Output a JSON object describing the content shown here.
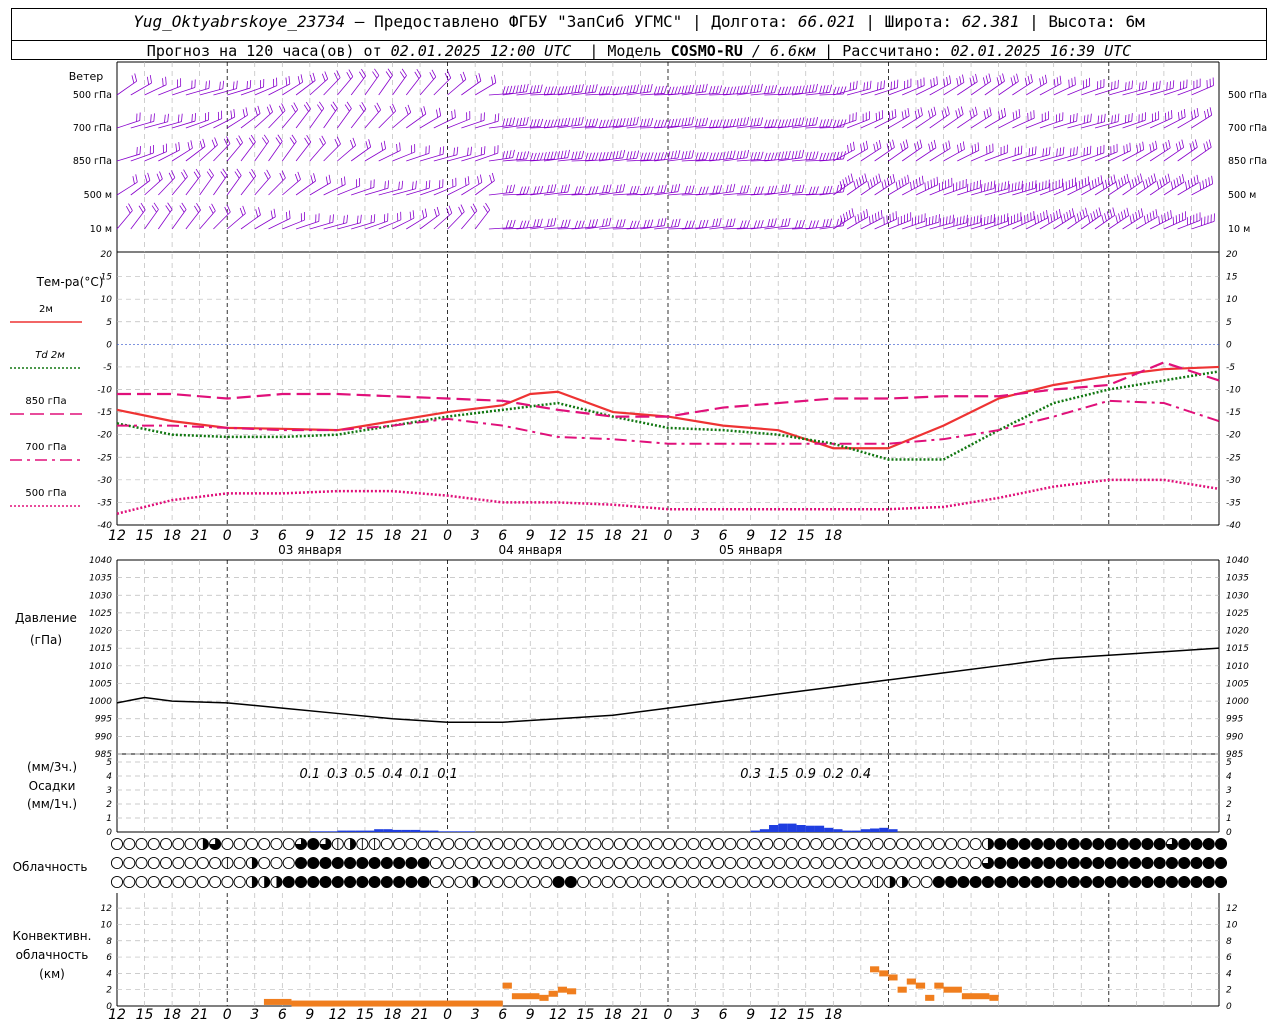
{
  "header": {
    "station": "Yug_Oktyabrskoye_23734",
    "provider": "– Предоставлено ФГБУ \"ЗапСиб УГМС\"",
    "lon_label": "Долгота:",
    "lon": "66.021",
    "lat_label": "Широта:",
    "lat": "62.381",
    "alt_label": "Высота:",
    "alt": "6м",
    "forecast_prefix": "Прогноз на 120 часа(ов) от",
    "forecast_time": "02.01.2025 12:00 UTC",
    "model_label": "Модель",
    "model_name": "COSMO-RU",
    "model_res": "/ 6.6км",
    "computed_label": "Рассчитано:",
    "computed_time": "02.01.2025 16:39 UTC"
  },
  "time_axis": {
    "hour_labels": [
      "12",
      "15",
      "18",
      "21",
      "0",
      "3",
      "6",
      "9",
      "12",
      "15",
      "18",
      "21",
      "0",
      "3",
      "6",
      "9",
      "12",
      "15",
      "18",
      "21",
      "0",
      "3",
      "6",
      "9",
      "12",
      "15",
      "18"
    ],
    "day_labels": [
      {
        "text": "03 января",
        "hour": 21
      },
      {
        "text": "04 января",
        "hour": 45
      },
      {
        "text": "05 января",
        "hour": 69
      }
    ]
  },
  "wind_panel": {
    "title": "Ветер",
    "levels": [
      "500 гПа",
      "700 гПа",
      "850 гПа",
      "500 м",
      "10  м"
    ],
    "colors": {
      "barb": "#8800cc"
    }
  },
  "temp_panel": {
    "title": "Тем-ра(°C)",
    "legend": [
      {
        "label": "2м",
        "style": "solid",
        "color": "#ee3333"
      },
      {
        "label": "Td  2м",
        "style": "dotted",
        "color": "#117711"
      },
      {
        "label": "850 гПа",
        "style": "longdash",
        "color": "#e0107a"
      },
      {
        "label": "700 гПа",
        "style": "dashdot",
        "color": "#e0107a"
      },
      {
        "label": "500 гПа",
        "style": "dotted",
        "color": "#e0107a"
      }
    ],
    "y_ticks": [
      20,
      15,
      10,
      5,
      0,
      -5,
      -10,
      -15,
      -20,
      -25,
      -30,
      -35,
      -40
    ]
  },
  "pressure_panel": {
    "title_line1": "Давление",
    "title_line2": "(гПа)",
    "y_ticks": [
      1040,
      1035,
      1030,
      1025,
      1020,
      1015,
      1010,
      1005,
      1000,
      995,
      990,
      985
    ]
  },
  "precip_panel": {
    "title_line1": "(мм/3ч.)",
    "title_line2": "Осадки",
    "title_line3": "(мм/1ч.)",
    "y_ticks": [
      5,
      4,
      3,
      2,
      1,
      0
    ],
    "amounts_3h": [
      {
        "hour": 21,
        "text": "0.1"
      },
      {
        "hour": 24,
        "text": "0.3"
      },
      {
        "hour": 27,
        "text": "0.5"
      },
      {
        "hour": 30,
        "text": "0.4"
      },
      {
        "hour": 33,
        "text": "0.1"
      },
      {
        "hour": 36,
        "text": "0.1"
      },
      {
        "hour": 69,
        "text": "0.3"
      },
      {
        "hour": 72,
        "text": "1.5"
      },
      {
        "hour": 75,
        "text": "0.9"
      },
      {
        "hour": 78,
        "text": "0.2"
      },
      {
        "hour": 81,
        "text": "0.4"
      }
    ]
  },
  "cloud_panel": {
    "title": "Облачность",
    "rows": [
      "0000000230000003431211000000000000000000000000000000000000000000000000024444444444444434444",
      "0000000001020004444444444400000000000000000000000000000000000000000000034444444444444444444",
      "0000000000022244444444444400020000004400000000000000000000000012200444444444444444444444444"
    ]
  },
  "conv_panel": {
    "title_line1": "Конвективн.",
    "title_line2": "облачность",
    "title_line3": "(км)",
    "y_ticks": [
      12,
      10,
      8,
      6,
      4,
      2,
      0
    ]
  },
  "chart_data": [
    {
      "type": "line",
      "name": "temperature",
      "x_unit": "hours from 02.01.2025 12:00 UTC",
      "ylim": [
        -40,
        20
      ],
      "series": [
        {
          "name": "2м",
          "x": [
            0,
            6,
            12,
            18,
            24,
            30,
            36,
            42,
            45,
            48,
            54,
            60,
            66,
            72,
            75,
            78,
            84,
            90,
            96,
            99,
            102,
            108,
            114,
            120
          ],
          "values": [
            -14.5,
            -17,
            -18.5,
            -18.7,
            -19,
            -17,
            -15,
            -13.5,
            -11,
            -10.5,
            -15,
            -16,
            -18,
            -19,
            -21,
            -23,
            -23,
            -18,
            -12,
            -10.5,
            -9,
            -7,
            -5.5,
            -5
          ]
        },
        {
          "name": "Td  2м",
          "x": [
            0,
            6,
            12,
            18,
            24,
            30,
            36,
            42,
            48,
            54,
            60,
            66,
            72,
            78,
            84,
            90,
            96,
            102,
            108,
            114,
            120
          ],
          "values": [
            -17.5,
            -20,
            -20.5,
            -20.5,
            -20,
            -18,
            -16,
            -14.5,
            -13,
            -16,
            -18.5,
            -19,
            -20,
            -22,
            -25.5,
            -25.5,
            -19,
            -13,
            -10,
            -8,
            -6
          ]
        },
        {
          "name": "850 гПа",
          "x": [
            0,
            6,
            12,
            18,
            24,
            30,
            36,
            42,
            48,
            54,
            60,
            66,
            72,
            78,
            84,
            90,
            96,
            102,
            108,
            114,
            120
          ],
          "values": [
            -11,
            -11,
            -12,
            -11,
            -11,
            -11.5,
            -12,
            -12.5,
            -14.5,
            -16,
            -16,
            -14,
            -13,
            -12,
            -12,
            -11.5,
            -11.5,
            -10,
            -9,
            -4,
            -8
          ]
        },
        {
          "name": "700 гПа",
          "x": [
            0,
            6,
            12,
            18,
            24,
            30,
            36,
            42,
            48,
            54,
            60,
            66,
            72,
            78,
            84,
            90,
            96,
            102,
            108,
            114,
            120
          ],
          "values": [
            -18,
            -18,
            -18.5,
            -19,
            -19,
            -18,
            -16.5,
            -18,
            -20.5,
            -21,
            -22,
            -22,
            -22,
            -22,
            -22,
            -21,
            -19,
            -16,
            -12.5,
            -13,
            -17
          ]
        },
        {
          "name": "500 гПа",
          "x": [
            0,
            6,
            12,
            18,
            24,
            30,
            36,
            42,
            48,
            54,
            60,
            66,
            72,
            78,
            84,
            90,
            96,
            102,
            108,
            114,
            120
          ],
          "values": [
            -37.5,
            -34.5,
            -33,
            -33,
            -32.5,
            -32.5,
            -33.5,
            -35,
            -35,
            -35.5,
            -36.5,
            -36.5,
            -36.5,
            -36.5,
            -36.5,
            -36,
            -34,
            -31.5,
            -30,
            -30,
            -32
          ]
        }
      ]
    },
    {
      "type": "line",
      "name": "pressure",
      "x_unit": "hours from 02.01.2025 12:00 UTC",
      "ylim": [
        985,
        1040
      ],
      "series": [
        {
          "name": "pressure",
          "x": [
            0,
            3,
            6,
            12,
            18,
            24,
            30,
            36,
            42,
            48,
            54,
            60,
            66,
            72,
            78,
            84,
            90,
            96,
            99,
            102,
            108,
            114,
            120
          ],
          "values": [
            999.5,
            1001,
            1000,
            999.5,
            998,
            996.5,
            995,
            994,
            994,
            995,
            996,
            998,
            1000,
            1002,
            1004,
            1006,
            1008,
            1010,
            1011,
            1012,
            1013,
            1014,
            1015
          ]
        }
      ]
    },
    {
      "type": "bar",
      "name": "precipitation_1h",
      "x_unit": "hours from 02.01.2025 12:00 UTC",
      "ylim": [
        0,
        5
      ],
      "x": [
        21,
        22,
        23,
        24,
        25,
        26,
        27,
        28,
        29,
        30,
        31,
        32,
        33,
        34,
        35,
        36,
        37,
        38,
        69,
        70,
        71,
        72,
        73,
        74,
        75,
        76,
        77,
        78,
        79,
        80,
        81,
        82,
        83,
        84
      ],
      "values": [
        0.05,
        0.05,
        0.05,
        0.1,
        0.1,
        0.1,
        0.1,
        0.2,
        0.2,
        0.15,
        0.15,
        0.15,
        0.1,
        0.1,
        0.05,
        0.05,
        0.05,
        0.05,
        0.1,
        0.2,
        0.5,
        0.6,
        0.6,
        0.5,
        0.45,
        0.45,
        0.3,
        0.2,
        0.1,
        0.1,
        0.2,
        0.25,
        0.3,
        0.2
      ]
    },
    {
      "type": "bar",
      "name": "convective_cloud",
      "x_unit": "hours from 02.01.2025 12:00 UTC",
      "ylim": [
        0,
        13
      ],
      "segments": [
        {
          "x0": 16,
          "x1": 19,
          "base": 0,
          "top": 0.5
        },
        {
          "x0": 19,
          "x1": 30,
          "base": 0,
          "top": 0.3
        },
        {
          "x0": 30,
          "x1": 42,
          "base": 0,
          "top": 0.3
        },
        {
          "x0": 42,
          "x1": 43,
          "base": 0,
          "top": 2.5
        },
        {
          "x0": 43,
          "x1": 46,
          "base": 0,
          "top": 1.2
        },
        {
          "x0": 46,
          "x1": 47,
          "base": 0,
          "top": 1.0
        },
        {
          "x0": 47,
          "x1": 48,
          "base": 0,
          "top": 1.5
        },
        {
          "x0": 48,
          "x1": 49,
          "base": 0,
          "top": 2.0
        },
        {
          "x0": 49,
          "x1": 50,
          "base": 0,
          "top": 1.8
        },
        {
          "x0": 82,
          "x1": 83,
          "base": 0,
          "top": 4.5
        },
        {
          "x0": 83,
          "x1": 84,
          "base": 0,
          "top": 4.0
        },
        {
          "x0": 84,
          "x1": 85,
          "base": 0,
          "top": 3.5
        },
        {
          "x0": 85,
          "x1": 86,
          "base": 0,
          "top": 2.0
        },
        {
          "x0": 86,
          "x1": 87,
          "base": 0,
          "top": 3.0
        },
        {
          "x0": 87,
          "x1": 88,
          "base": 0,
          "top": 2.5
        },
        {
          "x0": 88,
          "x1": 89,
          "base": 0,
          "top": 1.0
        },
        {
          "x0": 89,
          "x1": 90,
          "base": 0,
          "top": 2.5
        },
        {
          "x0": 90,
          "x1": 92,
          "base": 0,
          "top": 2.0
        },
        {
          "x0": 92,
          "x1": 95,
          "base": 0,
          "top": 1.2
        },
        {
          "x0": 95,
          "x1": 96,
          "base": 0,
          "top": 1.0
        }
      ]
    }
  ]
}
